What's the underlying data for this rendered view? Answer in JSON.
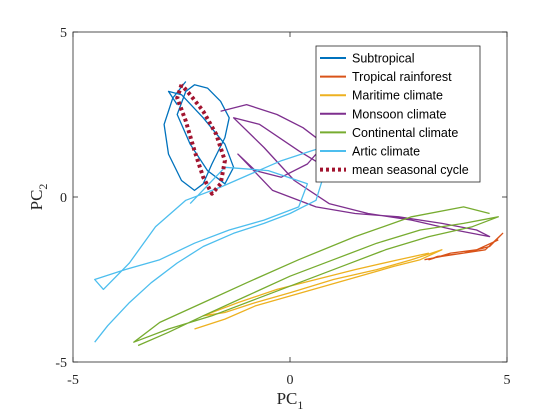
{
  "chart_data": {
    "type": "line",
    "xlabel_base": "PC",
    "xlabel_sub": "1",
    "ylabel_base": "PC",
    "ylabel_sub": "2",
    "xlim": [
      -5,
      5
    ],
    "ylim": [
      -5,
      5
    ],
    "x_ticks": [
      -5,
      0,
      5
    ],
    "y_ticks": [
      -5,
      0,
      5
    ],
    "x_tick_labels": [
      "-5",
      "0",
      "5"
    ],
    "y_tick_labels": [
      "-5",
      "0",
      "5"
    ],
    "grid": false,
    "legend_position": "top-right",
    "series": [
      {
        "name": "Subtropical",
        "color": "#0072BD",
        "style": "solid",
        "x": [
          -2.4,
          -2.7,
          -2.9,
          -2.8,
          -2.5,
          -2.2,
          -2.0,
          -1.8,
          -1.5,
          -1.4,
          -1.6,
          -1.9,
          -2.2,
          -2.4,
          -2.6,
          -2.3,
          -1.9,
          -1.5,
          -1.3,
          -1.5,
          -2.0,
          -2.5,
          -2.8,
          -2.6
        ],
        "y": [
          3.5,
          3.0,
          2.2,
          1.3,
          0.5,
          0.2,
          0.4,
          1.0,
          1.8,
          2.4,
          2.9,
          3.3,
          3.4,
          3.2,
          2.5,
          1.6,
          0.8,
          0.4,
          0.9,
          1.6,
          2.4,
          3.1,
          3.2,
          2.8
        ]
      },
      {
        "name": "Tropical rainforest",
        "color": "#D95319",
        "style": "solid",
        "x": [
          3.1,
          3.5,
          4.0,
          4.5,
          4.9,
          4.6,
          4.0,
          3.4,
          3.2,
          3.7,
          4.3,
          4.8
        ],
        "y": [
          -1.9,
          -1.8,
          -1.7,
          -1.6,
          -1.1,
          -1.5,
          -1.7,
          -1.8,
          -1.9,
          -1.7,
          -1.6,
          -1.3
        ]
      },
      {
        "name": "Maritime climate",
        "color": "#EDB120",
        "style": "solid",
        "x": [
          -2.2,
          -1.5,
          -0.8,
          0.0,
          0.8,
          1.6,
          2.4,
          3.0,
          3.5,
          2.8,
          2.0,
          1.0,
          0.0,
          -0.8,
          -1.5,
          -2.0,
          -1.2,
          -0.3,
          0.6,
          1.5,
          2.5,
          3.2
        ],
        "y": [
          -4.0,
          -3.7,
          -3.3,
          -3.0,
          -2.7,
          -2.4,
          -2.1,
          -1.9,
          -1.6,
          -1.9,
          -2.2,
          -2.5,
          -2.9,
          -3.2,
          -3.5,
          -3.6,
          -3.2,
          -2.8,
          -2.5,
          -2.2,
          -1.9,
          -1.7
        ]
      },
      {
        "name": "Monsoon climate",
        "color": "#7E2F8E",
        "style": "solid",
        "x": [
          -1.6,
          -1.0,
          -0.3,
          0.3,
          0.8,
          0.4,
          -0.2,
          -0.8,
          -1.2,
          -0.4,
          0.6,
          1.5,
          2.5,
          3.5,
          4.3,
          4.6,
          3.8,
          2.8,
          1.8,
          0.9,
          0.1,
          -0.6,
          -1.3,
          -0.7,
          0.2,
          1.2
        ],
        "y": [
          2.6,
          2.8,
          2.5,
          2.1,
          1.6,
          1.0,
          0.6,
          0.8,
          1.3,
          0.2,
          -0.3,
          -0.5,
          -0.6,
          -0.8,
          -1.0,
          -1.2,
          -1.0,
          -0.7,
          -0.5,
          -0.2,
          0.5,
          1.5,
          2.4,
          2.2,
          1.4,
          0.6
        ]
      },
      {
        "name": "Continental climate",
        "color": "#77AC30",
        "style": "solid",
        "x": [
          -3.5,
          -2.8,
          -2.0,
          -1.0,
          0.0,
          1.0,
          2.0,
          3.0,
          4.0,
          4.8,
          4.2,
          3.2,
          2.2,
          1.2,
          0.2,
          -0.8,
          -1.8,
          -2.8,
          -3.6,
          -3.0,
          -2.0,
          -1.0,
          0.2,
          1.5,
          2.8,
          4.0,
          4.6
        ],
        "y": [
          -4.5,
          -4.1,
          -3.6,
          -3.0,
          -2.4,
          -1.9,
          -1.4,
          -1.0,
          -0.8,
          -0.6,
          -0.9,
          -1.2,
          -1.6,
          -2.1,
          -2.6,
          -3.1,
          -3.6,
          -4.0,
          -4.4,
          -3.8,
          -3.2,
          -2.6,
          -1.9,
          -1.2,
          -0.6,
          -0.3,
          -0.5
        ]
      },
      {
        "name": "Artic climate",
        "color": "#4DBEEE",
        "style": "solid",
        "x": [
          -4.5,
          -4.2,
          -3.7,
          -3.2,
          -2.6,
          -2.0,
          -1.3,
          -0.6,
          0.0,
          0.6,
          1.0,
          0.5,
          -0.2,
          -0.9,
          -1.6,
          -2.4,
          -3.1,
          -3.7,
          -4.3,
          -4.5,
          -3.8,
          -3.0,
          -2.2,
          -1.4,
          -0.6,
          0.2,
          0.4,
          -0.5,
          -1.5,
          -2.3
        ],
        "y": [
          -4.4,
          -3.9,
          -3.2,
          -2.6,
          -2.0,
          -1.5,
          -1.1,
          -0.8,
          -0.5,
          -0.1,
          1.6,
          1.4,
          1.1,
          0.7,
          0.3,
          -0.1,
          -0.9,
          -2.0,
          -2.8,
          -2.5,
          -2.2,
          -1.9,
          -1.4,
          -1.0,
          -0.7,
          -0.3,
          0.4,
          0.8,
          0.9,
          -0.2
        ]
      },
      {
        "name": "mean seasonal cycle",
        "color": "#A2142F",
        "style": "dotted",
        "x": [
          -2.5,
          -2.6,
          -2.4,
          -2.2,
          -2.0,
          -1.8,
          -1.6,
          -1.5,
          -1.7,
          -2.0,
          -2.3,
          -2.5
        ],
        "y": [
          3.4,
          3.0,
          2.3,
          1.4,
          0.6,
          0.1,
          0.4,
          1.1,
          1.9,
          2.6,
          3.1,
          3.4
        ]
      }
    ]
  }
}
